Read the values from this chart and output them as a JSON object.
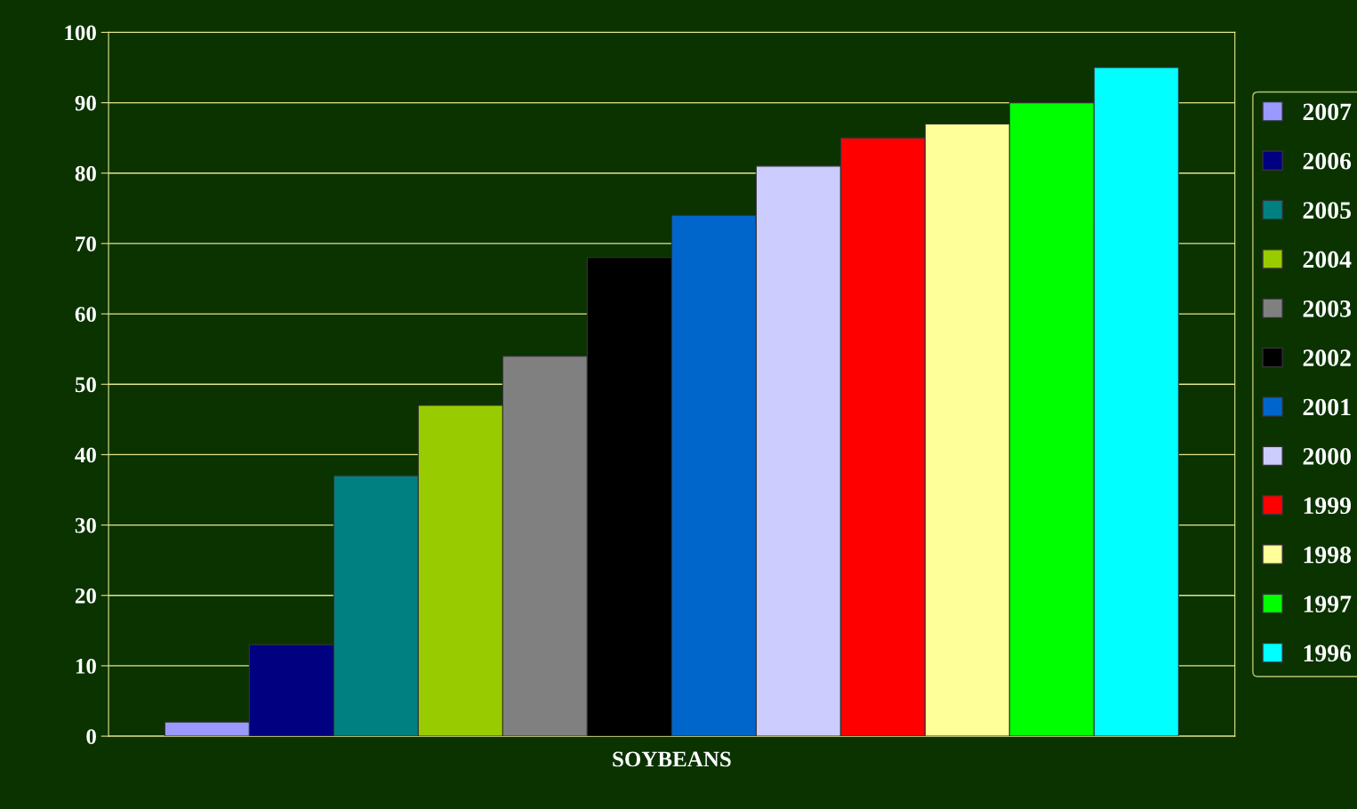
{
  "chart_data": {
    "type": "bar",
    "categories": [
      "SOYBEANS"
    ],
    "series": [
      {
        "name": "2007",
        "color": "#9999ff",
        "values": [
          2
        ]
      },
      {
        "name": "2006",
        "color": "#000080",
        "values": [
          13
        ]
      },
      {
        "name": "2005",
        "color": "#008080",
        "values": [
          37
        ]
      },
      {
        "name": "2004",
        "color": "#99cc00",
        "values": [
          47
        ]
      },
      {
        "name": "2003",
        "color": "#808080",
        "values": [
          54
        ]
      },
      {
        "name": "2002",
        "color": "#000000",
        "values": [
          68
        ]
      },
      {
        "name": "2001",
        "color": "#0066cc",
        "values": [
          74
        ]
      },
      {
        "name": "2000",
        "color": "#ccccff",
        "values": [
          81
        ]
      },
      {
        "name": "1999",
        "color": "#ff0000",
        "values": [
          85
        ]
      },
      {
        "name": "1998",
        "color": "#ffff99",
        "values": [
          87
        ]
      },
      {
        "name": "1997",
        "color": "#00ff00",
        "values": [
          90
        ]
      },
      {
        "name": "1996",
        "color": "#00ffff",
        "values": [
          95
        ]
      }
    ],
    "ylim": [
      0,
      100
    ],
    "yticks": [
      0,
      10,
      20,
      30,
      40,
      50,
      60,
      70,
      80,
      90,
      100
    ],
    "grid": "y",
    "legend": "right"
  }
}
